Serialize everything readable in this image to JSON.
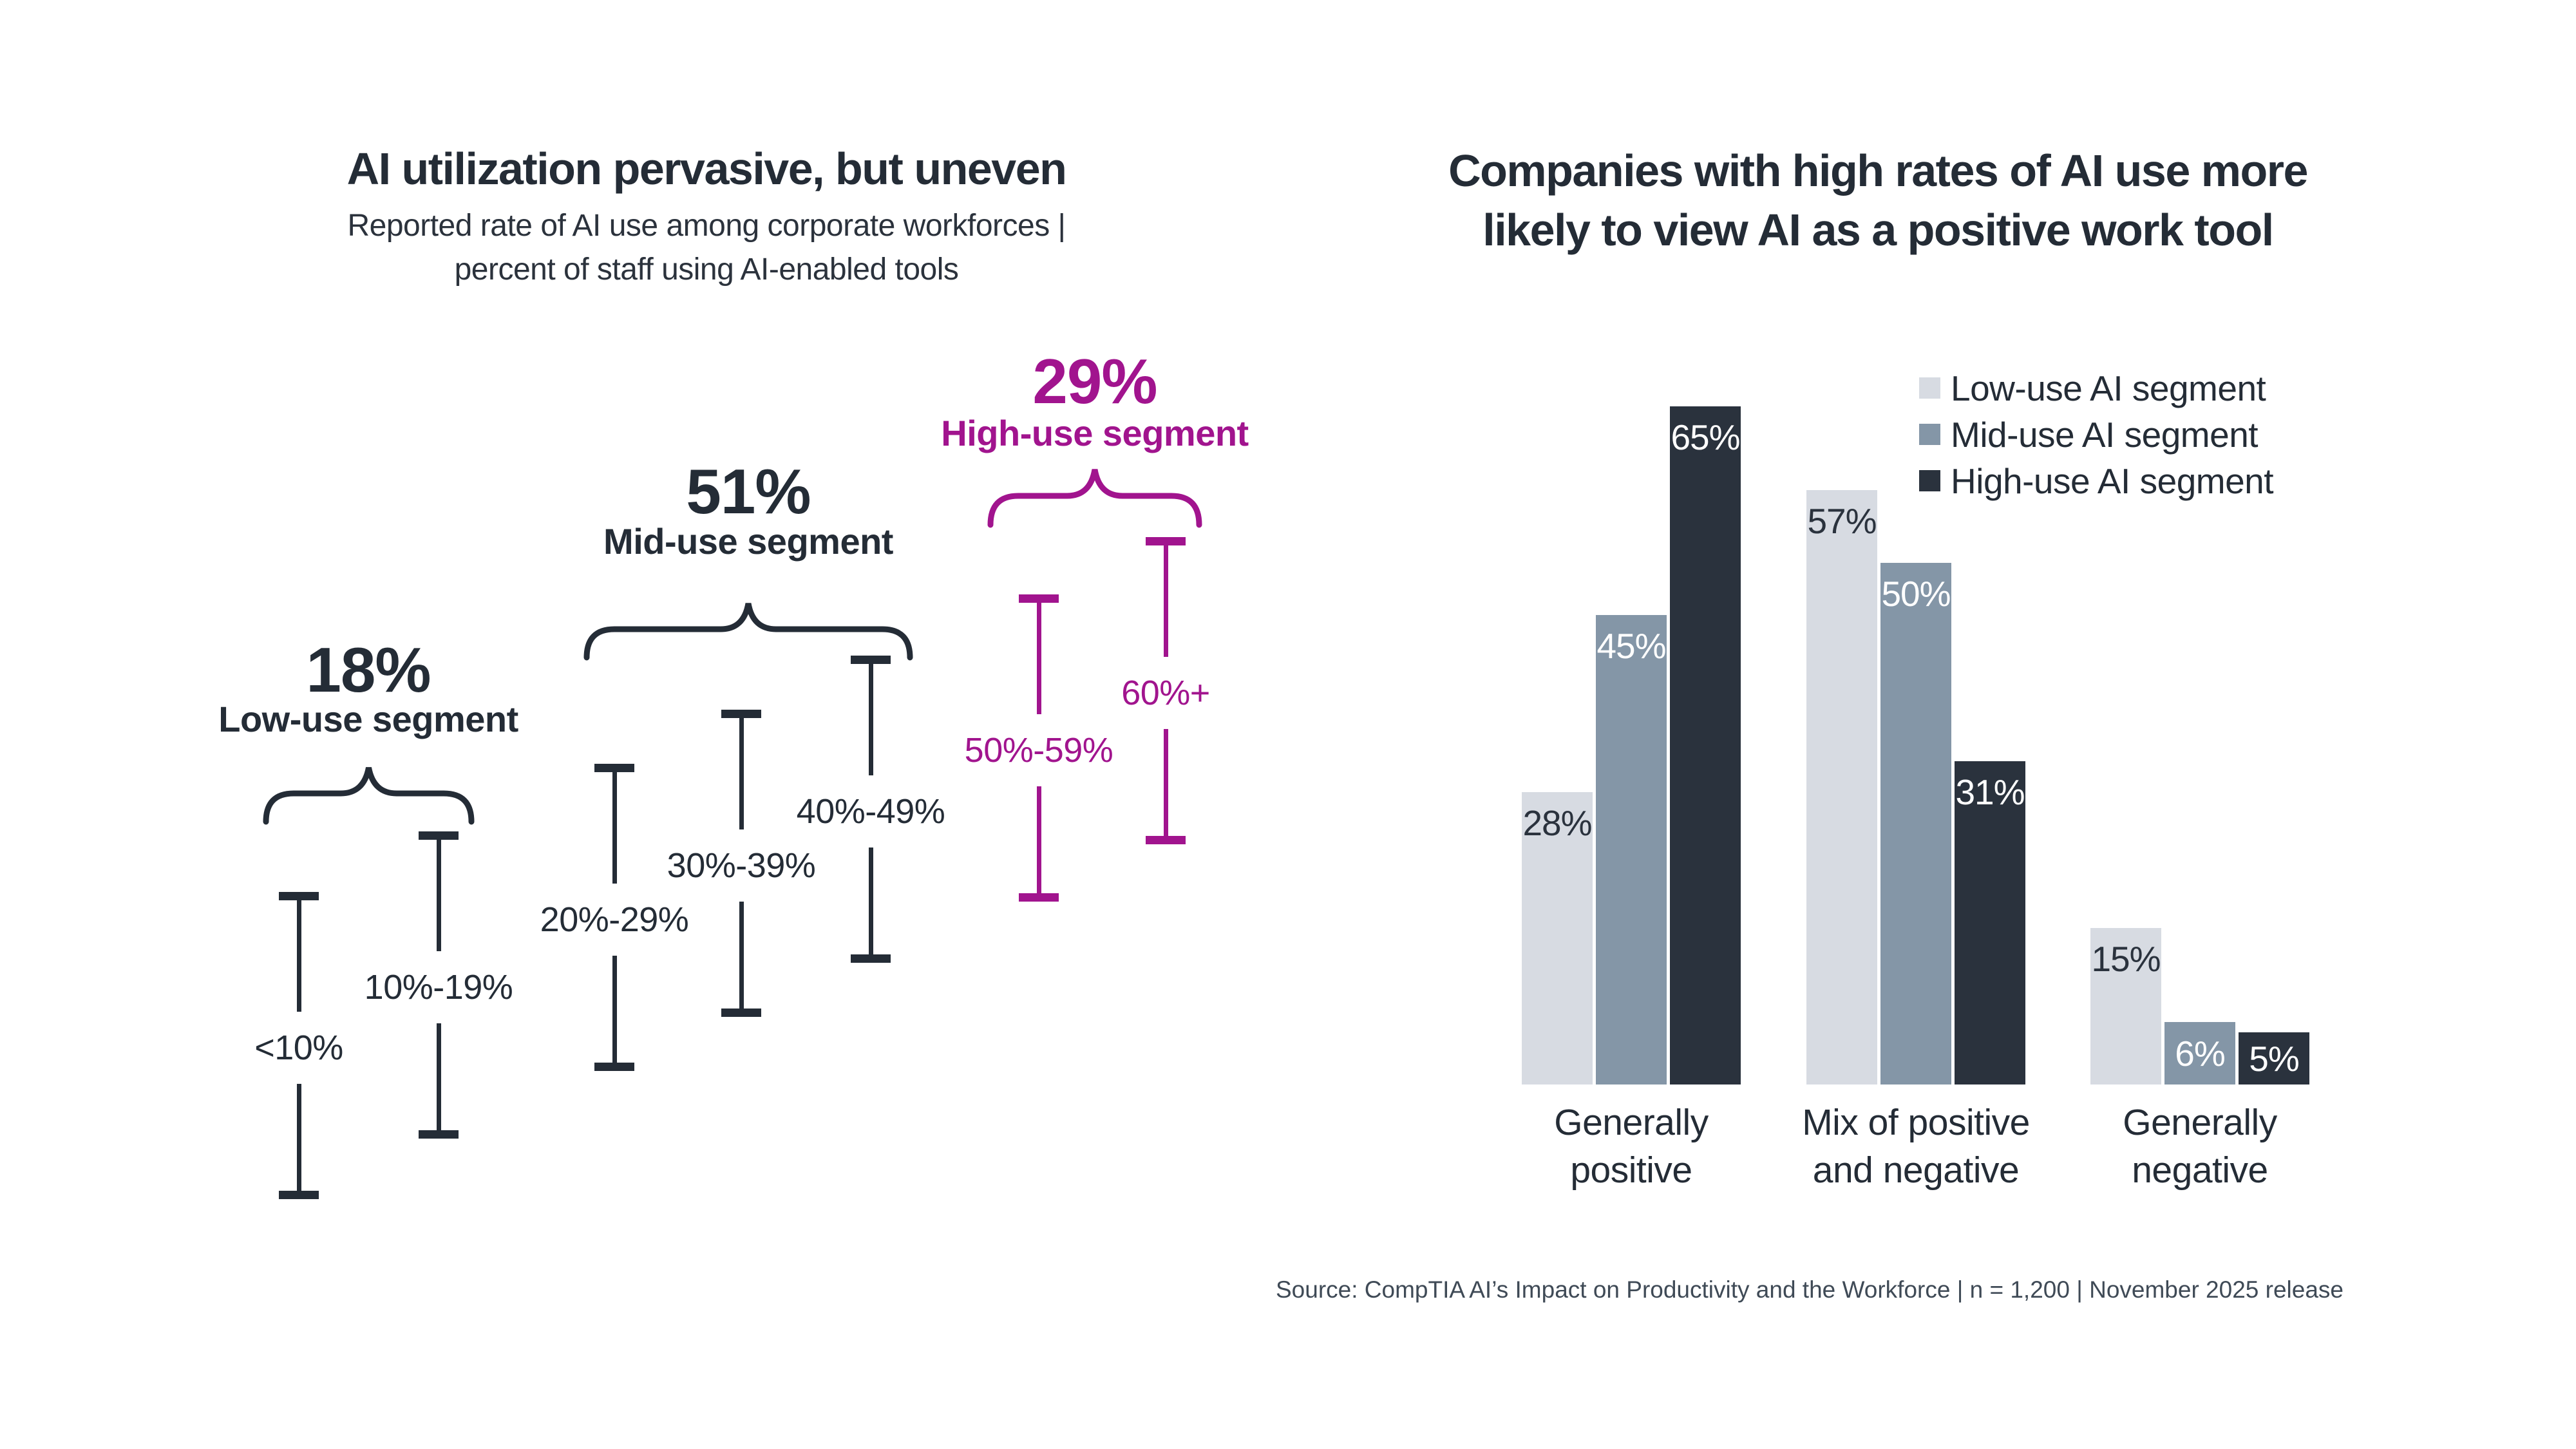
{
  "left": {
    "title": "AI utilization pervasive, but uneven",
    "subtitle_line1": "Reported rate of AI use among corporate workforces |",
    "subtitle_line2": "percent of staff using AI-enabled tools",
    "groups": [
      {
        "value": "18%",
        "label": "Low-use segment",
        "ranges": [
          "<10%",
          "10%-19%"
        ]
      },
      {
        "value": "51%",
        "label": "Mid-use segment",
        "ranges": [
          "20%-29%",
          "30%-39%",
          "40%-49%"
        ]
      },
      {
        "value": "29%",
        "label": "High-use segment",
        "ranges": [
          "50%-59%",
          "60%+"
        ]
      }
    ]
  },
  "right": {
    "title_line1": "Companies with high rates of AI use more",
    "title_line2": "likely to view AI as a positive work tool",
    "legend": [
      "Low-use AI segment",
      "Mid-use AI segment",
      "High-use AI segment"
    ],
    "categories": [
      {
        "line1": "Generally",
        "line2": "positive"
      },
      {
        "line1": "Mix of positive",
        "line2": "and negative"
      },
      {
        "line1": "Generally",
        "line2": "negative"
      }
    ],
    "value_labels": [
      [
        "28%",
        "45%",
        "65%"
      ],
      [
        "57%",
        "50%",
        "31%"
      ],
      [
        "15%",
        "6%",
        "5%"
      ]
    ]
  },
  "source": "Source: CompTIA AI’s Impact on Productivity and the Workforce | n = 1,200 | November 2025 release",
  "colors": {
    "charcoal": "#242c36",
    "magenta": "#a1148e",
    "bar_low": "#d7dbe2",
    "bar_mid": "#8496a7",
    "bar_high": "#2a323d",
    "source_text": "#3f4a56",
    "background": "#ffffff"
  },
  "chart_data": [
    {
      "type": "range",
      "title": "AI utilization pervasive, but uneven",
      "subtitle": "Reported rate of AI use among corporate workforces | percent of staff using AI-enabled tools",
      "groups": [
        {
          "label": "Low-use segment",
          "share_of_companies_pct": 18,
          "staff_usage_ranges": [
            "<10%",
            "10%-19%"
          ]
        },
        {
          "label": "Mid-use segment",
          "share_of_companies_pct": 51,
          "staff_usage_ranges": [
            "20%-29%",
            "30%-39%",
            "40%-49%"
          ]
        },
        {
          "label": "High-use segment",
          "share_of_companies_pct": 29,
          "staff_usage_ranges": [
            "50%-59%",
            "60%+"
          ]
        }
      ],
      "layout": "staircase of capped range bars, one per usage range, grouped under curly braces"
    },
    {
      "type": "bar",
      "title": "Companies with high rates of AI use more likely to view AI as a positive work tool",
      "categories": [
        "Generally positive",
        "Mix of positive and negative",
        "Generally negative"
      ],
      "series": [
        {
          "name": "Low-use AI segment",
          "values": [
            28,
            57,
            15
          ]
        },
        {
          "name": "Mid-use AI segment",
          "values": [
            45,
            50,
            6
          ]
        },
        {
          "name": "High-use AI segment",
          "values": [
            65,
            31,
            5
          ]
        }
      ],
      "value_suffix": "%",
      "ylim": [
        0,
        70
      ],
      "grid": false,
      "axes_shown": false,
      "legend_position": "top-right",
      "value_labels": "inside bar tops"
    }
  ]
}
